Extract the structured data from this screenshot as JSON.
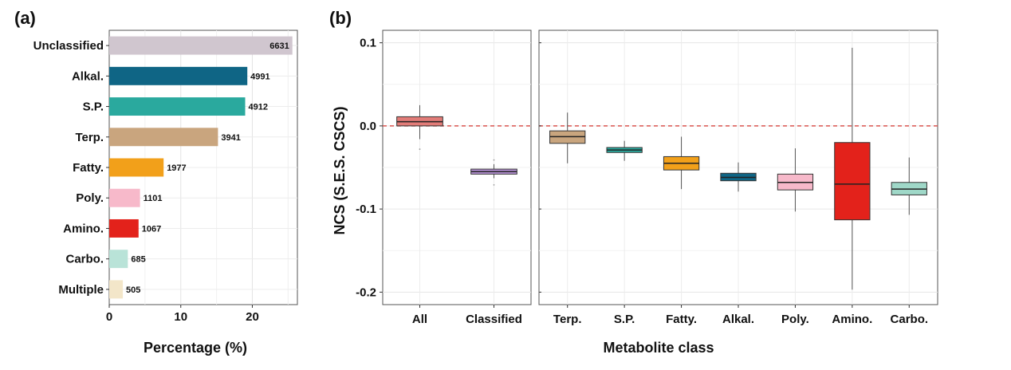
{
  "chart_data": [
    {
      "panel": "(a)",
      "type": "bar",
      "orientation": "horizontal",
      "xlabel": "Percentage (%)",
      "ylabel": "",
      "xlim": [
        0,
        26.3
      ],
      "xticks": [
        "0",
        "10",
        "20"
      ],
      "xtick_values": [
        0,
        10,
        20
      ],
      "grid": true,
      "categories": [
        "Unclassified",
        "Alkal.",
        "S.P.",
        "Terp.",
        "Fatty.",
        "Poly.",
        "Amino.",
        "Carbo.",
        "Multiple"
      ],
      "values": [
        25.6,
        19.3,
        19.0,
        15.2,
        7.6,
        4.3,
        4.1,
        2.6,
        1.9
      ],
      "counts": [
        "6631",
        "4991",
        "4912",
        "3941",
        "1977",
        "1101",
        "1067",
        "685",
        "505"
      ],
      "colors": [
        "#d0c6cf",
        "#0f6585",
        "#2aa99e",
        "#c9a57e",
        "#f2a01a",
        "#f7b9ca",
        "#e3221b",
        "#b9e3d8",
        "#f3e6c9"
      ]
    },
    {
      "panel": "(b)",
      "type": "box",
      "xlabel": "Metabolite class",
      "ylabel": "NCS (S.E.S. CSCS)",
      "ylim": [
        -0.215,
        0.115
      ],
      "yticks": [
        "-0.2",
        "-0.1",
        "0.0",
        "0.1"
      ],
      "ytick_values": [
        -0.2,
        -0.1,
        0.0,
        0.1
      ],
      "reference_line": 0.0,
      "grid": true,
      "groups": [
        {
          "name": "All",
          "facet": 1,
          "color": "#e27c78",
          "whisker_low": -0.016,
          "q1": 0.0,
          "median": 0.005,
          "q3": 0.011,
          "whisker_high": 0.025,
          "outliers": [
            -0.028
          ]
        },
        {
          "name": "Classified",
          "facet": 1,
          "color": "#b792d8",
          "whisker_low": -0.063,
          "q1": -0.058,
          "median": -0.055,
          "q3": -0.052,
          "whisker_high": -0.046,
          "outliers": [
            -0.071,
            -0.041
          ]
        },
        {
          "name": "Terp.",
          "facet": 2,
          "color": "#c9a57e",
          "whisker_low": -0.045,
          "q1": -0.021,
          "median": -0.013,
          "q3": -0.006,
          "whisker_high": 0.016,
          "outliers": []
        },
        {
          "name": "S.P.",
          "facet": 2,
          "color": "#2aa99e",
          "whisker_low": -0.042,
          "q1": -0.032,
          "median": -0.029,
          "q3": -0.026,
          "whisker_high": -0.018,
          "outliers": []
        },
        {
          "name": "Fatty.",
          "facet": 2,
          "color": "#f2a01a",
          "whisker_low": -0.076,
          "q1": -0.053,
          "median": -0.045,
          "q3": -0.037,
          "whisker_high": -0.013,
          "outliers": []
        },
        {
          "name": "Alkal.",
          "facet": 2,
          "color": "#0f6585",
          "whisker_low": -0.079,
          "q1": -0.066,
          "median": -0.062,
          "q3": -0.057,
          "whisker_high": -0.044,
          "outliers": []
        },
        {
          "name": "Poly.",
          "facet": 2,
          "color": "#f7b9ca",
          "whisker_low": -0.103,
          "q1": -0.077,
          "median": -0.068,
          "q3": -0.058,
          "whisker_high": -0.027,
          "outliers": []
        },
        {
          "name": "Amino.",
          "facet": 2,
          "color": "#e3221b",
          "whisker_low": -0.197,
          "q1": -0.113,
          "median": -0.07,
          "q3": -0.02,
          "whisker_high": 0.094,
          "outliers": []
        },
        {
          "name": "Carbo.",
          "facet": 2,
          "color": "#9fd8c8",
          "whisker_low": -0.107,
          "q1": -0.083,
          "median": -0.076,
          "q3": -0.068,
          "whisker_high": -0.038,
          "outliers": []
        }
      ]
    }
  ]
}
